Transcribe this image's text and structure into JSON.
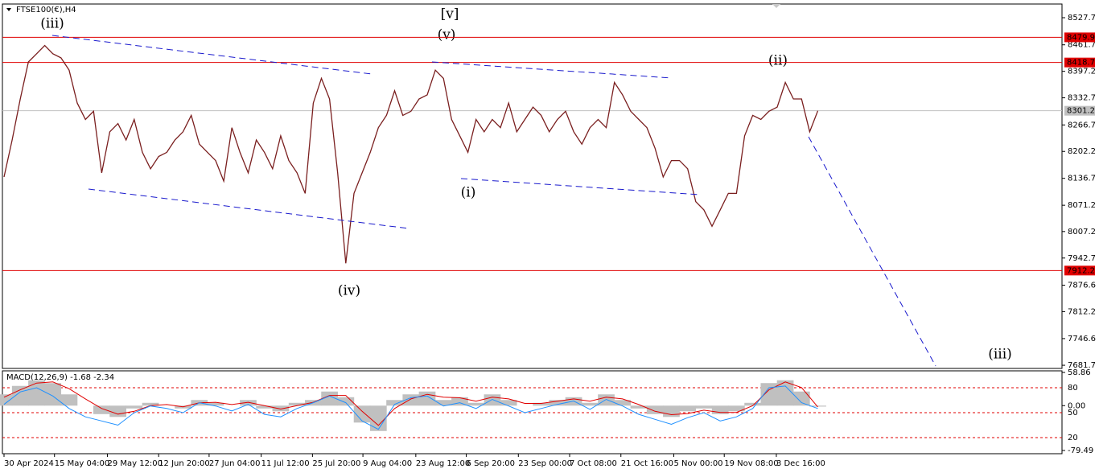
{
  "chart_data": [
    {
      "type": "line",
      "title": "FTSE100(€),H4",
      "color": "#7a1f1f",
      "values": [
        8140,
        8230,
        8330,
        8420,
        8440,
        8460,
        8440,
        8430,
        8400,
        8320,
        8280,
        8300,
        8150,
        8250,
        8270,
        8230,
        8280,
        8200,
        8160,
        8190,
        8200,
        8230,
        8250,
        8290,
        8220,
        8200,
        8180,
        8130,
        8260,
        8200,
        8150,
        8230,
        8200,
        8160,
        8240,
        8180,
        8150,
        8100,
        8320,
        8380,
        8330,
        8150,
        7930,
        8100,
        8150,
        8200,
        8260,
        8290,
        8350,
        8290,
        8300,
        8330,
        8340,
        8400,
        8380,
        8280,
        8240,
        8200,
        8280,
        8250,
        8280,
        8260,
        8320,
        8250,
        8280,
        8310,
        8290,
        8250,
        8280,
        8300,
        8250,
        8220,
        8260,
        8280,
        8260,
        8370,
        8340,
        8300,
        8280,
        8260,
        8210,
        8140,
        8180,
        8180,
        8160,
        8080,
        8060,
        8020,
        8060,
        8100,
        8100,
        8240,
        8290,
        8280,
        8300,
        8310,
        8370,
        8330,
        8330,
        8250,
        8301.2
      ],
      "xlim": [
        0,
        130
      ],
      "xticks": [
        {
          "value": 0,
          "label": "30 Apr 2024"
        },
        {
          "value": 6.2,
          "label": "15 May 04:00"
        },
        {
          "value": 12.7,
          "label": "29 May 12:00"
        },
        {
          "value": 19,
          "label": "12 Jun 20:00"
        },
        {
          "value": 25.2,
          "label": "27 Jun 04:00"
        },
        {
          "value": 31.6,
          "label": "11 Jul 12:00"
        },
        {
          "value": 37.9,
          "label": "25 Jul 20:00"
        },
        {
          "value": 44.1,
          "label": "9 Aug 04:00"
        },
        {
          "value": 50.6,
          "label": "23 Aug 12:00"
        },
        {
          "value": 56.8,
          "label": "6 Sep 20:00"
        },
        {
          "value": 63.2,
          "label": "23 Sep 00:00"
        },
        {
          "value": 69.5,
          "label": "7 Oct 08:00"
        },
        {
          "value": 75.8,
          "label": "21 Oct 16:00"
        },
        {
          "value": 82.3,
          "label": "5 Nov 00:00"
        },
        {
          "value": 88.5,
          "label": "19 Nov 08:00"
        },
        {
          "value": 94.9,
          "label": "3 Dec 16:00"
        }
      ],
      "ylim": [
        7674,
        8561
      ],
      "yticks": [
        8527.7,
        8461.7,
        8397.2,
        8332.7,
        8266.7,
        8202.2,
        8136.7,
        8071.2,
        8007.2,
        7942.7,
        7876.6,
        7812.2,
        7746.6,
        7681.7
      ],
      "levels": [
        8479.9,
        8418.7,
        7912.2
      ],
      "level_color": "#e00000",
      "last_price": 8301.2,
      "last_price_color": "#c0c0c0",
      "annotations": [
        "[v]",
        "(iii)",
        "(v)",
        "(ii)",
        "(i)",
        "(iv)",
        "(iii)"
      ],
      "annotation_colors": [
        "#2e8b22",
        "#1a1acd",
        "#1a1acd",
        "#1a1acd",
        "#1a1acd",
        "#1a1acd",
        "#1a1acd"
      ]
    },
    {
      "type": "macd",
      "title": "MACD(12,26,9) -1.68 -2.34",
      "xlim": [
        0,
        130
      ],
      "ylim": [
        -79.49,
        58.86
      ],
      "yticks": [
        58.86,
        {
          "value": 0,
          "label": "0.00"
        },
        -79.49
      ],
      "y2lim": [
        4.5,
        98.4
      ],
      "y2ticks": [
        80,
        50,
        20
      ],
      "y2_line_color": "#e00000",
      "series": [
        {
          "name": "MACD",
          "color": "#c0c0c0",
          "values": [
            20,
            35,
            45,
            40,
            20,
            0,
            -15,
            -20,
            -5,
            5,
            0,
            -5,
            10,
            5,
            0,
            10,
            -5,
            -10,
            5,
            10,
            25,
            15,
            -30,
            -45,
            10,
            20,
            25,
            10,
            15,
            5,
            20,
            10,
            0,
            5,
            10,
            15,
            5,
            20,
            10,
            -5,
            -15,
            -20,
            -10,
            -5,
            -15,
            -10,
            5,
            40,
            45,
            25,
            -1.68
          ]
        },
        {
          "name": "Signal",
          "color": "#e00000",
          "values": [
            15,
            28,
            40,
            42,
            30,
            12,
            -5,
            -15,
            -10,
            0,
            2,
            -2,
            5,
            6,
            2,
            6,
            0,
            -6,
            0,
            6,
            18,
            18,
            -10,
            -35,
            -5,
            12,
            20,
            15,
            14,
            8,
            15,
            12,
            4,
            4,
            8,
            12,
            8,
            15,
            12,
            2,
            -10,
            -16,
            -14,
            -8,
            -12,
            -12,
            0,
            28,
            42,
            32,
            -2.34
          ]
        },
        {
          "name": "Oscillator",
          "color": "#1e90ff",
          "axis": "y2",
          "values": [
            60,
            75,
            80,
            70,
            55,
            45,
            40,
            35,
            50,
            58,
            55,
            50,
            62,
            58,
            52,
            60,
            48,
            45,
            55,
            62,
            70,
            62,
            40,
            30,
            60,
            68,
            70,
            58,
            62,
            55,
            66,
            58,
            50,
            55,
            60,
            64,
            54,
            66,
            58,
            48,
            42,
            36,
            44,
            50,
            40,
            45,
            55,
            80,
            82,
            62,
            55
          ]
        }
      ]
    }
  ]
}
